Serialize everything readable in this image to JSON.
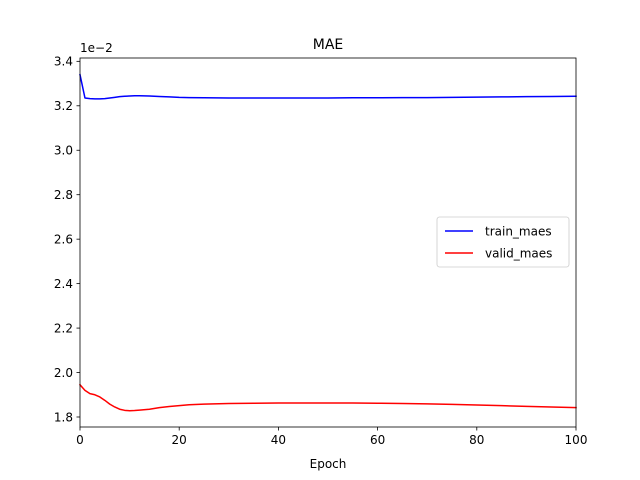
{
  "chart_data": {
    "type": "line",
    "title": "MAE",
    "xlabel": "Epoch",
    "ylabel": "",
    "y_offset_label": "1e−2",
    "xlim": [
      0,
      100
    ],
    "ylim": [
      1.755,
      3.415
    ],
    "xticks": [
      0,
      20,
      40,
      60,
      80,
      100
    ],
    "yticks": [
      1.8,
      2.0,
      2.2,
      2.4,
      2.6,
      2.8,
      3.0,
      3.2,
      3.4
    ],
    "ytick_labels": [
      "1.8",
      "2.0",
      "2.2",
      "2.4",
      "2.6",
      "2.8",
      "3.0",
      "3.2",
      "3.4"
    ],
    "grid": false,
    "legend_position": "center-right",
    "series": [
      {
        "name": "train_maes",
        "color": "#0000ff",
        "x": [
          0,
          1,
          2,
          3,
          4,
          5,
          6,
          7,
          8,
          9,
          10,
          11,
          12,
          14,
          16,
          18,
          20,
          22,
          25,
          30,
          35,
          40,
          45,
          50,
          55,
          60,
          65,
          70,
          75,
          80,
          85,
          90,
          95,
          100
        ],
        "y": [
          3.34,
          3.235,
          3.232,
          3.231,
          3.231,
          3.232,
          3.235,
          3.238,
          3.241,
          3.243,
          3.244,
          3.245,
          3.245,
          3.244,
          3.242,
          3.24,
          3.238,
          3.237,
          3.236,
          3.235,
          3.235,
          3.235,
          3.235,
          3.235,
          3.236,
          3.236,
          3.237,
          3.237,
          3.238,
          3.239,
          3.24,
          3.241,
          3.242,
          3.243
        ]
      },
      {
        "name": "valid_maes",
        "color": "#ff0000",
        "x": [
          0,
          1,
          2,
          3,
          4,
          5,
          6,
          7,
          8,
          9,
          10,
          11,
          12,
          14,
          16,
          18,
          20,
          22,
          25,
          30,
          35,
          40,
          45,
          50,
          55,
          60,
          65,
          70,
          75,
          80,
          85,
          90,
          95,
          100
        ],
        "y": [
          1.945,
          1.92,
          1.905,
          1.9,
          1.89,
          1.875,
          1.858,
          1.845,
          1.835,
          1.83,
          1.828,
          1.829,
          1.831,
          1.835,
          1.842,
          1.847,
          1.851,
          1.855,
          1.858,
          1.861,
          1.862,
          1.863,
          1.863,
          1.863,
          1.863,
          1.862,
          1.861,
          1.859,
          1.857,
          1.854,
          1.851,
          1.848,
          1.845,
          1.842
        ]
      }
    ]
  }
}
